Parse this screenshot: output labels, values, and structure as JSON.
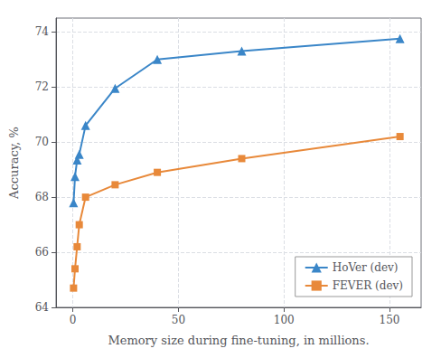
{
  "chart_data": {
    "type": "line",
    "xlabel": "Memory size during fine-tuning, in millions.",
    "ylabel": "Accuracy, %",
    "x": [
      0.3,
      1.0,
      2.0,
      3.0,
      6.0,
      20.0,
      40.0,
      80.0,
      155.0
    ],
    "series": [
      {
        "name": "HoVer (dev)",
        "color": "#3a86c8",
        "marker": "triangle",
        "values": [
          67.8,
          68.75,
          69.35,
          69.55,
          70.6,
          71.95,
          73.0,
          73.3,
          73.75
        ]
      },
      {
        "name": "FEVER (dev)",
        "color": "#e8893a",
        "marker": "square",
        "values": [
          64.7,
          65.4,
          66.2,
          67.0,
          68.0,
          68.45,
          68.9,
          69.4,
          70.2
        ]
      }
    ],
    "xlim": [
      -8,
      165
    ],
    "xticks": [
      0,
      50,
      100,
      150
    ],
    "ylim": [
      64,
      74.5
    ],
    "yticks": [
      64,
      66,
      68,
      70,
      72,
      74
    ],
    "grid": true,
    "legend": "lower right"
  }
}
